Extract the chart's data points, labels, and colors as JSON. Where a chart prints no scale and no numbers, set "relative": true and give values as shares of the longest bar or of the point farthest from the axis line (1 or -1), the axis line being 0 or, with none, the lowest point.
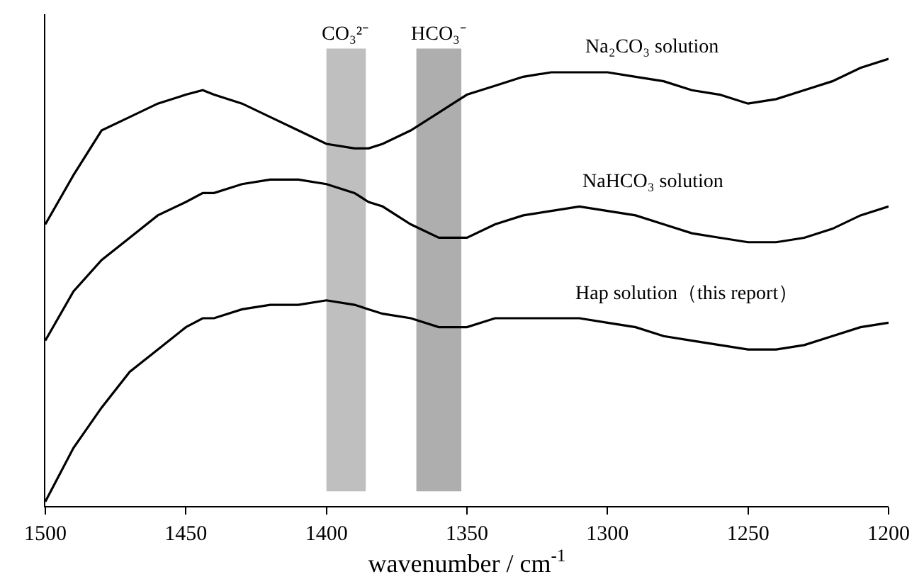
{
  "chart_data": {
    "type": "line",
    "relative": true,
    "xlabel": "wavenumber / cm$^{-1}$",
    "x": [
      1500,
      1490,
      1480,
      1470,
      1460,
      1450,
      1444,
      1440,
      1430,
      1420,
      1410,
      1400,
      1390,
      1385,
      1380,
      1370,
      1360,
      1355,
      1350,
      1340,
      1330,
      1320,
      1310,
      1300,
      1290,
      1280,
      1270,
      1260,
      1250,
      1240,
      1230,
      1220,
      1210,
      1200
    ],
    "xlim": [
      1500,
      1200
    ],
    "xticks": [
      1500,
      1450,
      1400,
      1350,
      1300,
      1250,
      1200
    ],
    "series": [
      {
        "name": "Na₂CO₃ solution",
        "color": "#000000",
        "values": [
          0.63,
          0.74,
          0.84,
          0.87,
          0.9,
          0.92,
          0.93,
          0.92,
          0.9,
          0.87,
          0.84,
          0.81,
          0.8,
          0.8,
          0.81,
          0.84,
          0.88,
          0.9,
          0.92,
          0.94,
          0.96,
          0.97,
          0.97,
          0.97,
          0.96,
          0.95,
          0.93,
          0.92,
          0.9,
          0.91,
          0.93,
          0.95,
          0.98,
          1.0
        ]
      },
      {
        "name": "NaHCO₃ solution",
        "color": "#000000",
        "values": [
          0.37,
          0.48,
          0.55,
          0.6,
          0.65,
          0.68,
          0.7,
          0.7,
          0.72,
          0.73,
          0.73,
          0.72,
          0.7,
          0.68,
          0.67,
          0.63,
          0.6,
          0.6,
          0.6,
          0.63,
          0.65,
          0.66,
          0.67,
          0.66,
          0.65,
          0.63,
          0.61,
          0.6,
          0.59,
          0.59,
          0.6,
          0.62,
          0.65,
          0.67
        ]
      },
      {
        "name": "Hap solution（this report）",
        "color": "#000000",
        "values": [
          0.01,
          0.13,
          0.22,
          0.3,
          0.35,
          0.4,
          0.42,
          0.42,
          0.44,
          0.45,
          0.45,
          0.46,
          0.45,
          0.44,
          0.43,
          0.42,
          0.4,
          0.4,
          0.4,
          0.42,
          0.42,
          0.42,
          0.42,
          0.41,
          0.4,
          0.38,
          0.37,
          0.36,
          0.35,
          0.35,
          0.36,
          0.38,
          0.4,
          0.41
        ]
      }
    ],
    "bands": [
      {
        "axis": "x",
        "from": 1400,
        "to": 1386,
        "label": "CO₃²⁻",
        "color": "#b4b4b4"
      },
      {
        "axis": "x",
        "from": 1368,
        "to": 1352,
        "label": "HCO₃⁻",
        "color": "#a0a0a0"
      }
    ],
    "grid": false,
    "legend": false,
    "marker": "none",
    "line_style": "solid"
  }
}
